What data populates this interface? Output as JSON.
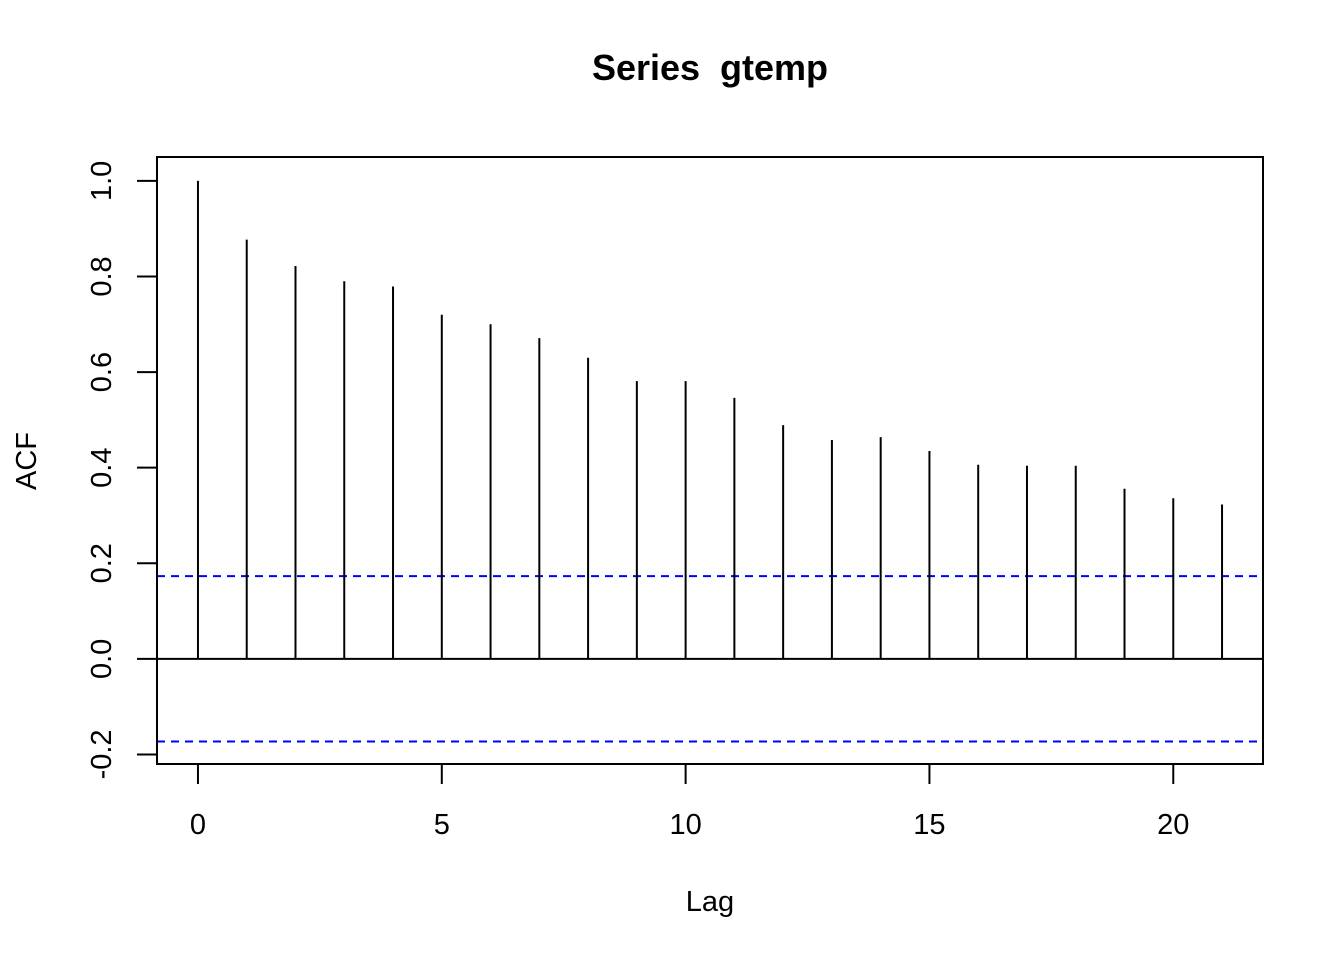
{
  "chart_data": {
    "type": "bar",
    "title": "Series  gtemp",
    "xlabel": "Lag",
    "ylabel": "ACF",
    "xlim": [
      -0.84,
      21.84
    ],
    "ylim": [
      -0.22,
      1.05
    ],
    "x_ticks": [
      0,
      5,
      10,
      15,
      20
    ],
    "y_ticks": [
      -0.2,
      0.0,
      0.2,
      0.4,
      0.6,
      0.8,
      1.0
    ],
    "x_tick_labels": [
      "0",
      "5",
      "10",
      "15",
      "20"
    ],
    "y_tick_labels": [
      "-0.2",
      "0.0",
      "0.2",
      "0.4",
      "0.6",
      "0.8",
      "1.0"
    ],
    "series": [
      {
        "x": [
          0,
          1,
          2,
          3,
          4,
          5,
          6,
          7,
          8,
          9,
          10,
          11,
          12,
          13,
          14,
          15,
          16,
          17,
          18,
          19,
          20,
          21
        ],
        "values": [
          1.0,
          0.877,
          0.822,
          0.79,
          0.779,
          0.72,
          0.7,
          0.671,
          0.63,
          0.581,
          0.581,
          0.546,
          0.489,
          0.458,
          0.464,
          0.435,
          0.406,
          0.404,
          0.404,
          0.356,
          0.336,
          0.323
        ]
      }
    ],
    "confidence_bounds": [
      0.173,
      -0.173
    ],
    "colors": {
      "bars": "#000000",
      "bounds": "#0000ff",
      "zero_line": "#000000"
    },
    "grid": false,
    "legend": "none"
  }
}
